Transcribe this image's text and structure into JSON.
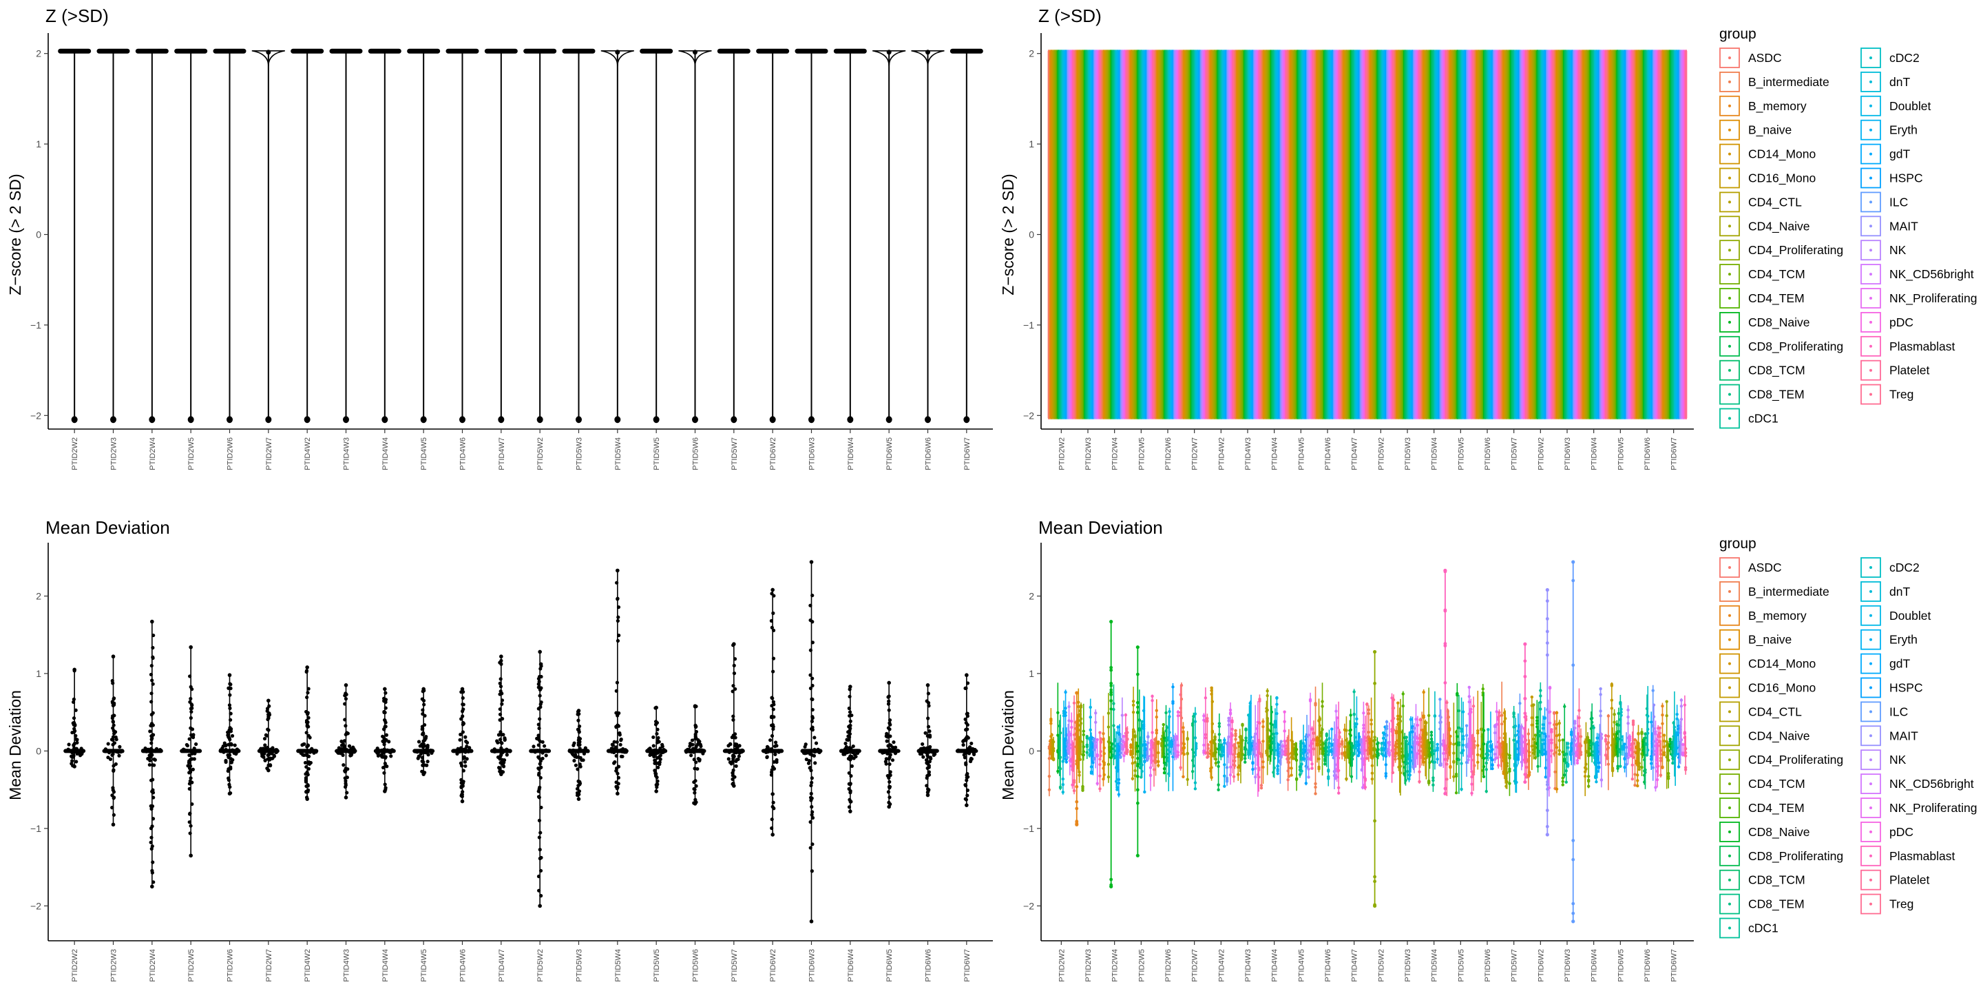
{
  "samples": [
    "PTID2W2",
    "PTID2W3",
    "PTID2W4",
    "PTID2W5",
    "PTID2W6",
    "PTID2W7",
    "PTID4W2",
    "PTID4W3",
    "PTID4W4",
    "PTID4W5",
    "PTID4W6",
    "PTID4W7",
    "PTID5W2",
    "PTID5W3",
    "PTID5W4",
    "PTID5W5",
    "PTID5W6",
    "PTID5W7",
    "PTID6W2",
    "PTID6W3",
    "PTID6W4",
    "PTID6W5",
    "PTID6W6",
    "PTID6W7"
  ],
  "groups": [
    "ASDC",
    "B_intermediate",
    "B_memory",
    "B_naive",
    "CD14_Mono",
    "CD16_Mono",
    "CD4_CTL",
    "CD4_Naive",
    "CD4_Proliferating",
    "CD4_TCM",
    "CD4_TEM",
    "CD8_Naive",
    "CD8_Proliferating",
    "CD8_TCM",
    "CD8_TEM",
    "cDC1",
    "cDC2",
    "dnT",
    "Doublet",
    "Eryth",
    "gdT",
    "HSPC",
    "ILC",
    "MAIT",
    "NK",
    "NK_CD56bright",
    "NK_Proliferating",
    "pDC",
    "Plasmablast",
    "Platelet",
    "Treg"
  ],
  "group_colors": [
    "#F8766D",
    "#F07F4F",
    "#E7861B",
    "#DD8D00",
    "#D19400",
    "#C39B00",
    "#B4A000",
    "#A3A500",
    "#8FAA00",
    "#76AF00",
    "#53B400",
    "#00B81F",
    "#00BB4E",
    "#00BE6B",
    "#00C084",
    "#00C19A",
    "#00BFC4",
    "#00BCD8",
    "#00B8E7",
    "#00B2F3",
    "#00ABFD",
    "#00A1FF",
    "#619CFF",
    "#9590FF",
    "#B983FF",
    "#D376FF",
    "#E76BF3",
    "#F564E3",
    "#FF62BC",
    "#FF6A98",
    "#FF6C91"
  ],
  "chart_data": [
    {
      "type": "violin",
      "title": "Z (>SD)",
      "xlabel": "",
      "ylabel": "Z−score (> 2 SD)",
      "ylim": [
        -2.15,
        2.15
      ],
      "yticks": [
        -2,
        -1,
        0,
        1,
        2
      ],
      "x": "samples",
      "values_range": [
        -2.0,
        2.0
      ],
      "note_values": "each sample: points clustered at -2 and +2"
    },
    {
      "type": "violin",
      "title": "Z (>SD)",
      "xlabel": "",
      "ylabel": "Z−score (> 2 SD)",
      "ylim": [
        -2.15,
        2.15
      ],
      "yticks": [
        -2,
        -1,
        0,
        1,
        2
      ],
      "x": "samples",
      "color_by": "group",
      "legend": {
        "title": "group",
        "position": "right"
      }
    },
    {
      "type": "scatter",
      "title": "Mean Deviation",
      "xlabel": "",
      "ylabel": "Mean Deviation",
      "ylim": [
        -2.45,
        2.6
      ],
      "yticks": [
        -2,
        -1,
        0,
        1,
        2
      ],
      "x": "samples",
      "series": [
        {
          "values_min": [
            -0.2,
            -0.95,
            -1.75,
            -1.35,
            -0.55,
            -0.25,
            -0.62,
            -0.6,
            -0.52,
            -0.3,
            -0.65,
            -0.3,
            -2.0,
            -0.62,
            -0.55,
            -0.52,
            -0.68,
            -0.45,
            -1.08,
            -2.2,
            -0.78,
            -0.72,
            -0.57,
            -0.7
          ],
          "values_max": [
            1.05,
            1.22,
            1.67,
            1.34,
            0.98,
            0.65,
            1.08,
            0.85,
            0.8,
            0.8,
            0.8,
            1.22,
            1.28,
            0.52,
            2.33,
            0.56,
            0.58,
            1.38,
            2.08,
            2.44,
            0.83,
            0.88,
            0.85,
            0.98
          ]
        }
      ]
    },
    {
      "type": "scatter",
      "title": "Mean Deviation",
      "xlabel": "",
      "ylabel": "Mean Deviation",
      "ylim": [
        -2.45,
        2.6
      ],
      "yticks": [
        -2,
        -1,
        0,
        1,
        2
      ],
      "x": "samples",
      "color_by": "group",
      "legend": {
        "title": "group",
        "position": "right"
      }
    }
  ]
}
